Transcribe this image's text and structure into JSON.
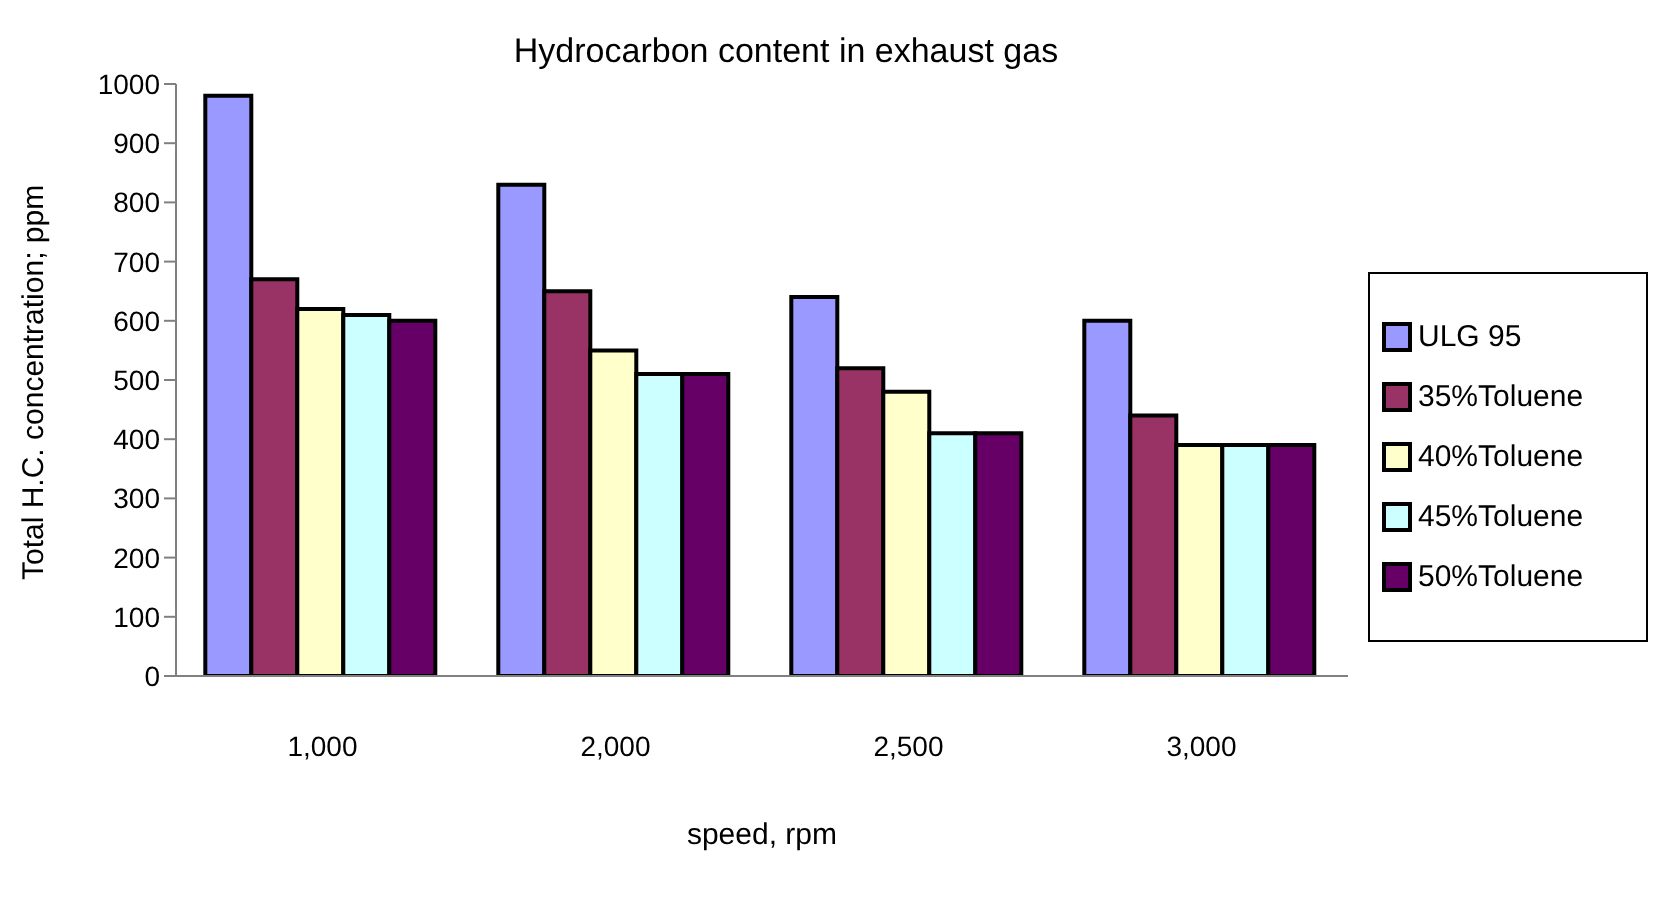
{
  "chart_data": {
    "type": "bar",
    "title": "Hydrocarbon content in exhaust gas",
    "xlabel": "speed, rpm",
    "ylabel": "Total H.C. concentration; ppm",
    "categories": [
      "1,000",
      "2,000",
      "2,500",
      "3,000"
    ],
    "series": [
      {
        "name": "ULG 95",
        "color": "#9999ff",
        "values": [
          980,
          830,
          640,
          600
        ]
      },
      {
        "name": "35%Toluene",
        "color": "#993366",
        "values": [
          670,
          650,
          520,
          440
        ]
      },
      {
        "name": "40%Toluene",
        "color": "#ffffcc",
        "values": [
          620,
          550,
          480,
          390
        ]
      },
      {
        "name": "45%Toluene",
        "color": "#ccffff",
        "values": [
          610,
          510,
          410,
          390
        ]
      },
      {
        "name": "50%Toluene",
        "color": "#660066",
        "values": [
          600,
          510,
          410,
          390
        ]
      }
    ],
    "ylim": [
      0,
      1000
    ],
    "yticks": [
      0,
      100,
      200,
      300,
      400,
      500,
      600,
      700,
      800,
      900,
      1000
    ],
    "grid": false,
    "legend": "right"
  }
}
